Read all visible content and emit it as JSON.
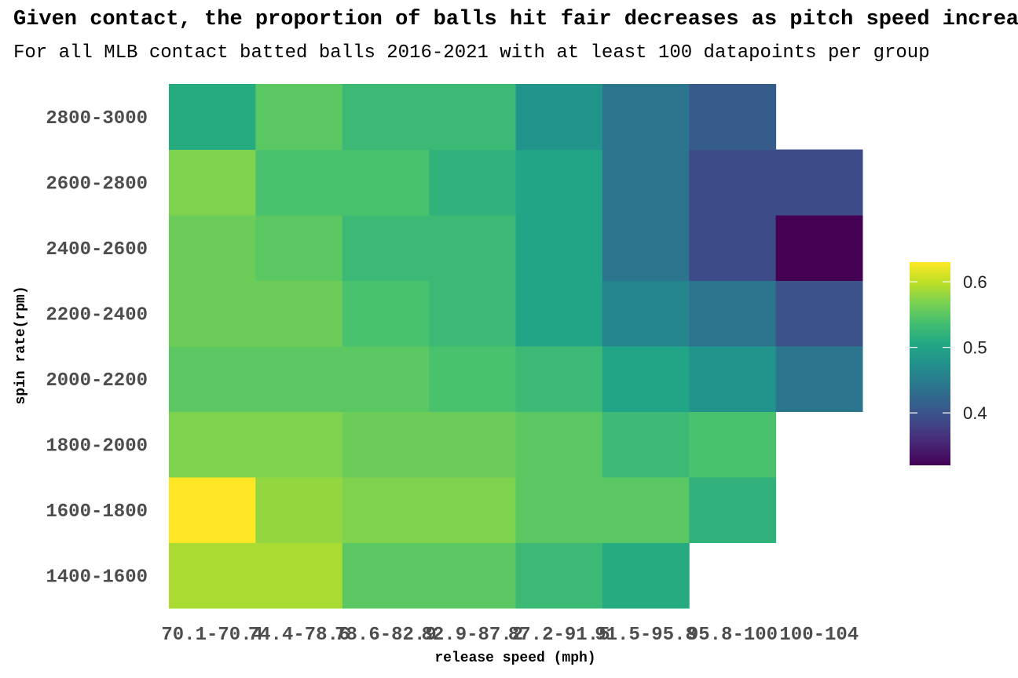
{
  "chart_data": {
    "type": "heatmap",
    "title": "Given contact, the proportion of balls hit fair decreases as pitch speed increases",
    "subtitle": "For all MLB contact batted balls 2016-2021 with at least 100 datapoints per group",
    "xlabel": "release speed (mph)",
    "ylabel": "spin rate(rpm)",
    "x_categories": [
      "70.1-70.4",
      "74.4-78.6",
      "78.6-82.9",
      "82.9-87.2",
      "87.2-91.5",
      "91.5-95.8",
      "95.8-100",
      "100-104"
    ],
    "y_categories": [
      "1400-1600",
      "1600-1800",
      "1800-2000",
      "2000-2200",
      "2200-2400",
      "2400-2600",
      "2600-2800",
      "2800-3000"
    ],
    "values": [
      [
        0.59,
        0.59,
        0.55,
        0.55,
        0.53,
        0.51,
        null,
        null
      ],
      [
        0.63,
        0.58,
        0.57,
        0.57,
        0.55,
        0.55,
        0.52,
        null
      ],
      [
        0.57,
        0.57,
        0.56,
        0.56,
        0.55,
        0.53,
        0.54,
        null
      ],
      [
        0.55,
        0.55,
        0.55,
        0.54,
        0.53,
        0.5,
        0.48,
        0.44
      ],
      [
        0.56,
        0.56,
        0.54,
        0.53,
        0.5,
        0.46,
        0.44,
        0.4
      ],
      [
        0.56,
        0.55,
        0.53,
        0.53,
        0.5,
        0.44,
        0.39,
        0.32
      ],
      [
        0.57,
        0.54,
        0.54,
        0.52,
        0.5,
        0.44,
        0.39,
        0.39
      ],
      [
        0.51,
        0.55,
        0.53,
        0.53,
        0.48,
        0.44,
        0.41,
        null
      ]
    ],
    "colorbar": {
      "min": 0.32,
      "max": 0.63,
      "ticks": [
        0.4,
        0.5,
        0.6
      ],
      "tick_labels": [
        "0.4",
        "0.5",
        "0.6"
      ]
    },
    "colormap": "viridis",
    "legend_position": "right"
  }
}
